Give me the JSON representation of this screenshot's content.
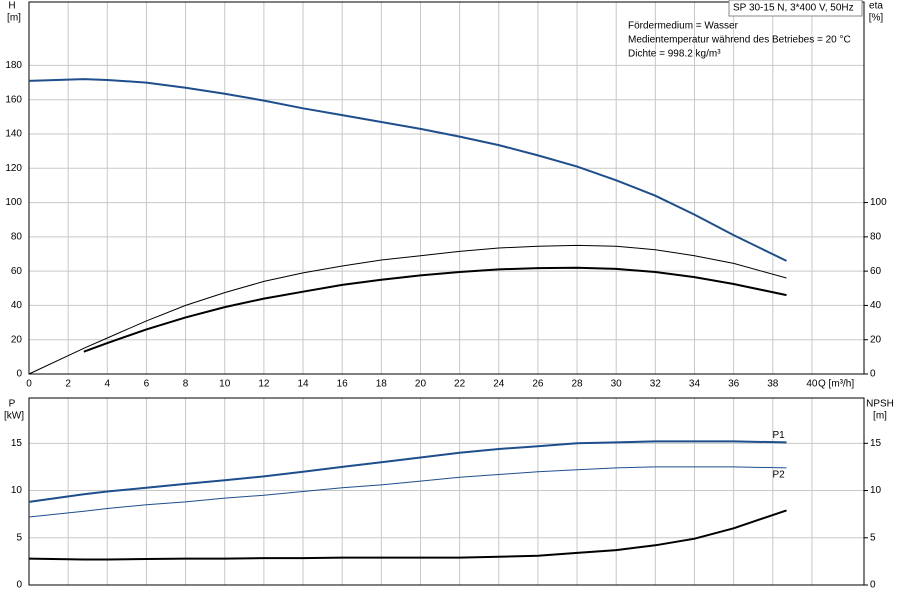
{
  "header": {
    "model": "SP 30-15 N, 3*400 V, 50Hz",
    "notes": [
      "Fördermedium = Wasser",
      "Medientemperatur während des Betriebes = 20 °C",
      "Dichte = 998.2 kg/m³"
    ]
  },
  "chart_data": [
    {
      "type": "line",
      "ylabel": "H",
      "yunit": "[m]",
      "y2label": "eta",
      "y2unit": "[%]",
      "xlabel": "Q [m³/h]",
      "x": [
        0,
        2.8,
        4,
        6,
        8,
        10,
        12,
        14,
        16,
        18,
        20,
        22,
        24,
        26,
        28,
        30,
        32,
        34,
        36,
        38.7
      ],
      "xlim": [
        0,
        42.66
      ],
      "xticks": [
        0,
        2,
        4,
        6,
        8,
        10,
        12,
        14,
        16,
        18,
        20,
        22,
        24,
        26,
        28,
        30,
        32,
        34,
        36,
        38,
        40
      ],
      "ylim": [
        0,
        217
      ],
      "yticks": [
        0,
        20,
        40,
        60,
        80,
        100,
        120,
        140,
        160,
        180
      ],
      "y2lim": [
        0,
        217
      ],
      "y2ticks": [
        0,
        20,
        40,
        60,
        80,
        100
      ],
      "grid": true,
      "series": [
        {
          "color": "#1f4e8c",
          "line_width": 2,
          "values": [
            171,
            172,
            171.5,
            170,
            167,
            163.5,
            159.5,
            155,
            151,
            147,
            143,
            138.5,
            133.5,
            127.5,
            121,
            113,
            104,
            93,
            81,
            66
          ]
        },
        {
          "color": "#000000",
          "line_width": 1,
          "axis": "y2",
          "values": [
            0,
            15,
            21,
            31,
            40,
            47.5,
            54,
            59,
            63,
            66.5,
            69,
            71.5,
            73.5,
            74.5,
            75,
            74.5,
            72.5,
            69,
            64.5,
            56
          ]
        },
        {
          "color": "#000000",
          "line_width": 2,
          "axis": "y2",
          "values": [
            null,
            13,
            18,
            26,
            33,
            39,
            44,
            48,
            52,
            55,
            57.5,
            59.5,
            61,
            61.8,
            62,
            61.3,
            59.5,
            56.5,
            52.5,
            46
          ]
        }
      ]
    },
    {
      "type": "line",
      "ylabel": "P",
      "yunit": "[kW]",
      "y2label": "NPSH",
      "y2unit": "[m]",
      "x": [
        0,
        2.8,
        4,
        6,
        8,
        10,
        12,
        14,
        16,
        18,
        20,
        22,
        24,
        26,
        28,
        30,
        32,
        34,
        36,
        38.7
      ],
      "xlim": [
        0,
        42.66
      ],
      "ylim": [
        0,
        19.8
      ],
      "yticks": [
        0,
        5,
        10,
        15
      ],
      "y2lim": [
        0,
        19.8
      ],
      "y2ticks": [
        0,
        5,
        10,
        15
      ],
      "grid": true,
      "series": [
        {
          "name": "P1",
          "color": "#1f4e8c",
          "line_width": 2,
          "values": [
            8.8,
            9.6,
            9.9,
            10.3,
            10.7,
            11.1,
            11.5,
            12,
            12.5,
            13,
            13.5,
            14,
            14.4,
            14.7,
            15,
            15.1,
            15.2,
            15.2,
            15.2,
            15.1
          ]
        },
        {
          "name": "P2",
          "color": "#1f4e8c",
          "line_width": 1,
          "values": [
            7.2,
            7.8,
            8.1,
            8.5,
            8.8,
            9.2,
            9.5,
            9.9,
            10.3,
            10.6,
            11,
            11.4,
            11.7,
            12,
            12.2,
            12.4,
            12.5,
            12.5,
            12.5,
            12.4
          ]
        },
        {
          "color": "#000000",
          "line_width": 2,
          "axis": "y2",
          "values": [
            2.8,
            2.7,
            2.7,
            2.75,
            2.8,
            2.8,
            2.85,
            2.85,
            2.9,
            2.9,
            2.9,
            2.9,
            3,
            3.1,
            3.4,
            3.7,
            4.2,
            4.9,
            6,
            7.9
          ]
        }
      ]
    }
  ]
}
